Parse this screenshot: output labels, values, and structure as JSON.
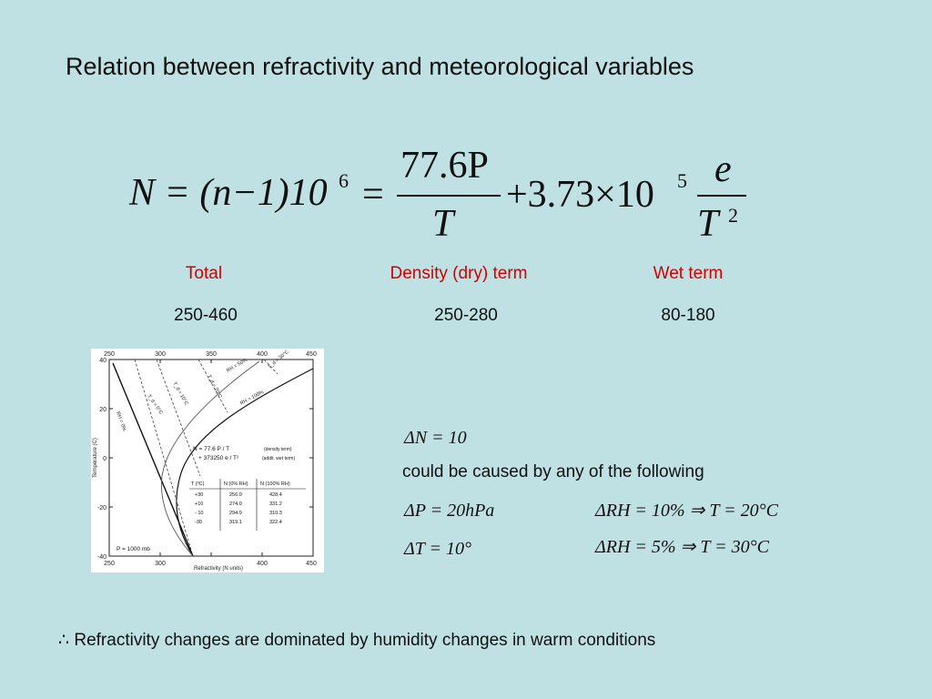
{
  "slide": {
    "title": "Relation between refractivity and meteorological variables",
    "conclusion": "∴ Refractivity changes are dominated by humidity changes in warm conditions"
  },
  "equation": {
    "lhs": "N = (n−1)10",
    "lhs_exp": "6",
    "eq2": "=",
    "term1_num": "77.6P",
    "term1_den": "T",
    "plus_coef": "+3.73×10",
    "plus_exp": "5",
    "term2_num": "e",
    "term2_den": "T",
    "term2_den_exp": "2"
  },
  "columns": [
    {
      "header": "Total",
      "value": "250-460"
    },
    {
      "header": "Density (dry) term",
      "value": "250-280"
    },
    {
      "header": "Wet term",
      "value": "80-180"
    }
  ],
  "chart": {
    "x_ticks": [
      "250",
      "300",
      "350",
      "400",
      "450"
    ],
    "y_ticks": [
      "40",
      "20",
      "0",
      "-20",
      "-40"
    ],
    "xlabel": "Refractivity (N units)",
    "ylabel": "Temperature (C)",
    "formula_line1": "N = 77.6 P / T",
    "formula_note1": "(density term)",
    "formula_line2": "+ 373250 e / T²",
    "formula_note2": "(addit. wet term)",
    "table_headers": [
      "T (ºC)",
      "N (0% RH)",
      "N (100% RH)"
    ],
    "table_rows": [
      [
        "+30",
        "256.0",
        "428.4"
      ],
      [
        "+10",
        "274.0",
        "331.2"
      ],
      [
        "- 10",
        "294.9",
        "310.3"
      ],
      [
        "-30",
        "319.1",
        "322.4"
      ]
    ],
    "pressure_label": "P = 1000 mb",
    "curve_labels": [
      "RH = 0%",
      "RH = 100%",
      "RH = 50%",
      "T_d = 0°C",
      "T_d = 10°C",
      "T_d = 20°C",
      "T_d = 30°C"
    ]
  },
  "deltas": {
    "dn": "ΔN = 10",
    "caused_by": "could be caused by any of the following",
    "dp": "ΔP = 20hPa",
    "dt": "ΔT = 10°",
    "drh1": "ΔRH = 10% ⇒ T = 20°C",
    "drh2": "ΔRH = 5% ⇒ T = 30°C"
  }
}
